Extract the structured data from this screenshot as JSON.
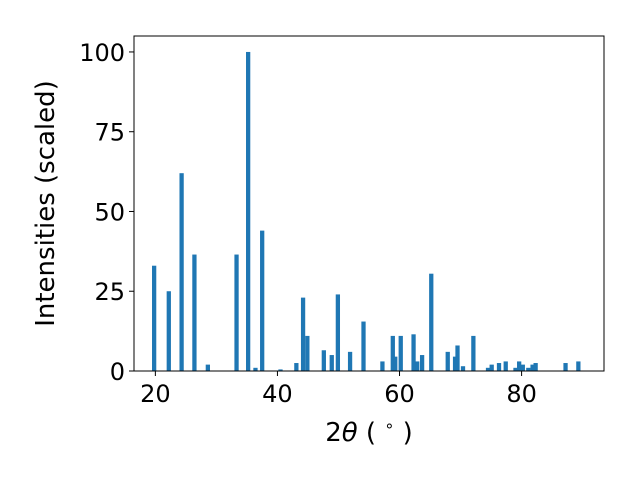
{
  "chart_data": {
    "type": "bar",
    "title": "",
    "xlabel": "2θ (°)",
    "xlabel_parts": {
      "pre": "2",
      "theta": "θ",
      "post": " ( ",
      "deg": "∘",
      "close": " )"
    },
    "ylabel": "Intensities (scaled)",
    "xlim": [
      16.5,
      93.5
    ],
    "ylim": [
      0,
      105
    ],
    "xticks": [
      20,
      40,
      60,
      80
    ],
    "yticks": [
      0,
      25,
      50,
      75,
      100
    ],
    "grid": false,
    "bar_color": "#1f77b4",
    "bar_width": 0.7,
    "series": [
      {
        "x": [
          19.8,
          22.2,
          24.3,
          26.4,
          28.6,
          33.3,
          35.2,
          36.4,
          37.5,
          40.5,
          43.1,
          44.2,
          44.9,
          47.6,
          48.9,
          49.9,
          51.9,
          54.1,
          57.2,
          58.9,
          59.3,
          60.2,
          62.3,
          62.9,
          63.7,
          65.2,
          67.9,
          69.1,
          69.5,
          70.4,
          72.1,
          74.5,
          75.1,
          76.3,
          77.4,
          79.0,
          79.6,
          80.2,
          81.1,
          81.8,
          82.3,
          87.2,
          89.3
        ],
        "values": [
          33,
          25,
          62,
          36.5,
          2,
          36.5,
          100,
          1,
          44,
          0.5,
          2.5,
          23,
          11,
          6.5,
          5,
          24,
          6,
          15.5,
          3,
          11,
          4.5,
          11,
          11.5,
          3,
          5,
          30.5,
          6,
          4.5,
          8,
          1.5,
          11,
          1,
          2,
          2.5,
          3,
          1,
          3,
          2,
          1,
          2,
          2.5,
          2.5,
          3
        ]
      }
    ]
  }
}
